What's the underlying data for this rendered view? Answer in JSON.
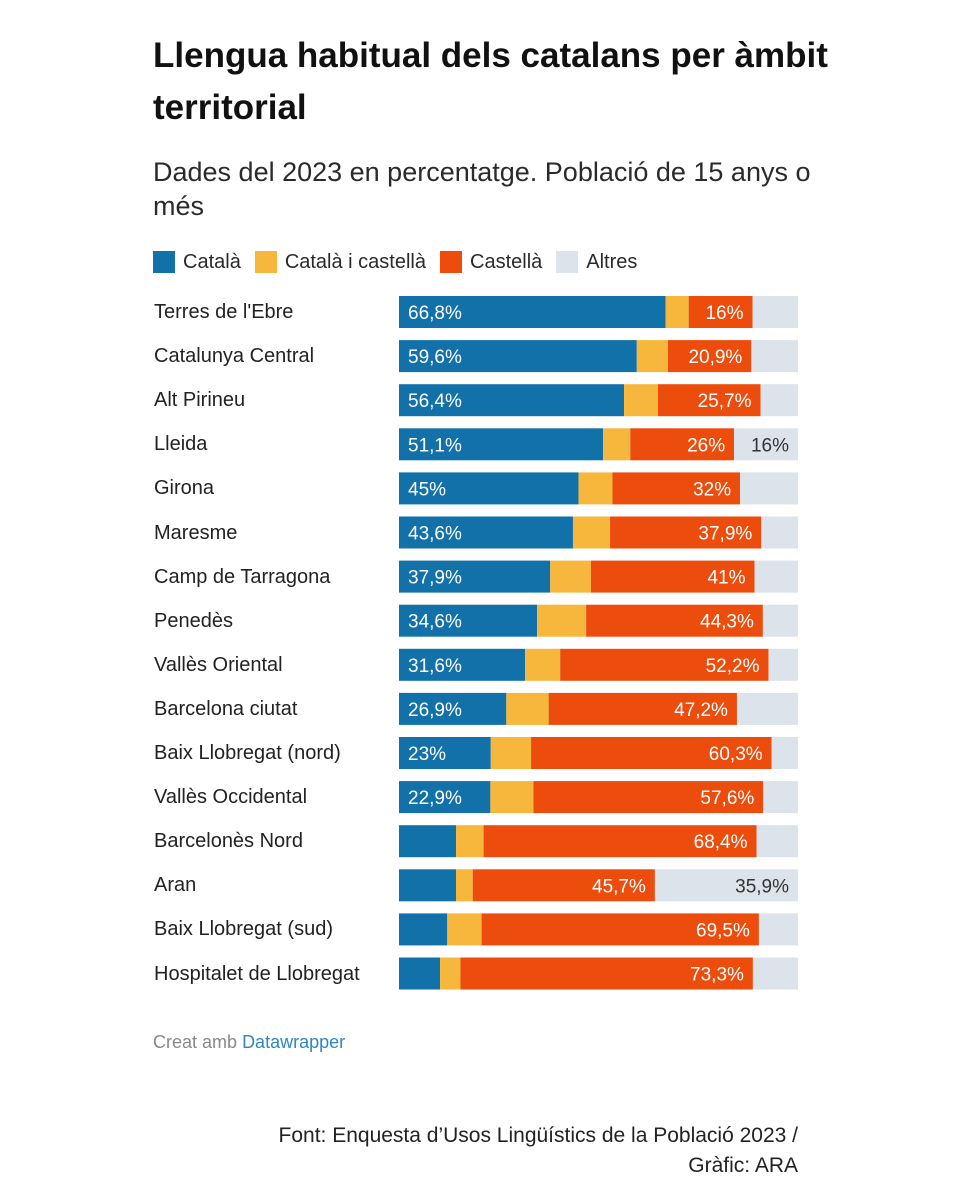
{
  "chart_data": {
    "type": "bar",
    "orientation": "horizontal",
    "stacked": true,
    "title": "Llengua habitual dels catalans per àmbit territorial",
    "subtitle": "Dades del 2023 en percentatge. Població de 15 anys o més",
    "xlim": [
      0,
      100
    ],
    "legend_position": "top",
    "categories": [
      "Terres de l'Ebre",
      "Catalunya Central",
      "Alt Pirineu",
      "Lleida",
      "Girona",
      "Maresme",
      "Camp de Tarragona",
      "Penedès",
      "Vallès Oriental",
      "Barcelona ciutat",
      "Baix Llobregat (nord)",
      "Vallès Occidental",
      "Barcelonès Nord",
      "Aran",
      "Baix Llobregat (sud)",
      "Hospitalet de Llobregat"
    ],
    "series": [
      {
        "name": "Català",
        "color": "#1271a8",
        "values": [
          66.8,
          59.6,
          56.4,
          51.1,
          45,
          43.6,
          37.9,
          34.6,
          31.6,
          26.9,
          23,
          22.9,
          14.3,
          14.3,
          12.1,
          10.3
        ],
        "labels": [
          "66,8%",
          "59,6%",
          "56,4%",
          "51,1%",
          "45%",
          "43,6%",
          "37,9%",
          "34,6%",
          "31,6%",
          "26,9%",
          "23%",
          "22,9%",
          "",
          "",
          "",
          ""
        ]
      },
      {
        "name": "Català i castellà",
        "color": "#f6b73c",
        "values": [
          5.8,
          7.8,
          8.5,
          6.8,
          8.5,
          9.3,
          10.2,
          12.3,
          8.8,
          10.6,
          10.1,
          10.8,
          6.9,
          4.2,
          8.6,
          5.1
        ],
        "labels": [
          "",
          "",
          "",
          "",
          "",
          "",
          "",
          "",
          "",
          "",
          "",
          "",
          "",
          "",
          "",
          ""
        ]
      },
      {
        "name": "Castellà",
        "color": "#ec4c0c",
        "values": [
          16,
          20.9,
          25.7,
          26,
          32,
          37.9,
          41,
          44.3,
          52.2,
          47.2,
          60.3,
          57.6,
          68.4,
          45.7,
          69.5,
          73.3
        ],
        "labels": [
          "16%",
          "20,9%",
          "25,7%",
          "26%",
          "32%",
          "37,9%",
          "41%",
          "44,3%",
          "52,2%",
          "47,2%",
          "60,3%",
          "57,6%",
          "68,4%",
          "45,7%",
          "69,5%",
          "73,3%"
        ]
      },
      {
        "name": "Altres",
        "color": "#dde3ea",
        "values": [
          11.4,
          11.7,
          9.4,
          16,
          14.5,
          9.2,
          10.9,
          8.8,
          7.4,
          15.3,
          6.6,
          8.7,
          10.4,
          35.9,
          9.8,
          11.3
        ],
        "labels": [
          "",
          "",
          "",
          "16%",
          "",
          "",
          "",
          "",
          "",
          "",
          "",
          "",
          "",
          "35,9%",
          "",
          ""
        ]
      }
    ]
  },
  "footer": {
    "credit_prefix": "Creat amb",
    "credit_link": "Datawrapper",
    "source_line1": "Font: Enquesta d’Usos Lingüístics de la Població 2023 /",
    "source_line2": "Gràfic: ARA"
  }
}
